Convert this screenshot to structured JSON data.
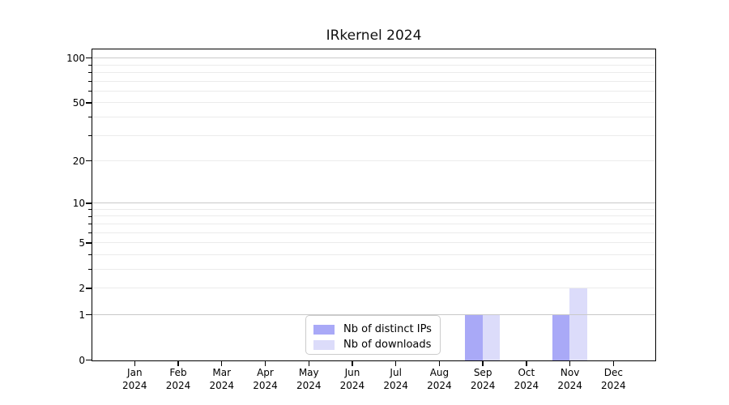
{
  "chart_data": {
    "type": "bar",
    "title": "IRkernel 2024",
    "categories": [
      "Jan",
      "Feb",
      "Mar",
      "Apr",
      "May",
      "Jun",
      "Jul",
      "Aug",
      "Sep",
      "Oct",
      "Nov",
      "Dec"
    ],
    "category_year": "2024",
    "series": [
      {
        "name": "Nb of distinct IPs",
        "color": "#a9a9f7",
        "values": [
          0,
          0,
          0,
          0,
          0,
          0,
          0,
          0,
          1,
          0,
          1,
          0
        ]
      },
      {
        "name": "Nb of downloads",
        "color": "#dcdcfa",
        "values": [
          0,
          0,
          0,
          0,
          0,
          0,
          0,
          0,
          1,
          0,
          2,
          0
        ]
      }
    ],
    "xlabel": "",
    "ylabel": "",
    "y_axis": {
      "scale": "log1p",
      "tick_labels": [
        "0",
        "1",
        "2",
        "5",
        "10",
        "20",
        "50",
        "100"
      ],
      "tick_values": [
        0,
        1,
        2,
        5,
        10,
        20,
        50,
        100
      ],
      "major_gridline_values": [
        1,
        10,
        100
      ],
      "minor_gridline_values": [
        2,
        3,
        4,
        5,
        6,
        7,
        8,
        9,
        20,
        30,
        40,
        50,
        60,
        70,
        80,
        90
      ],
      "ylim": [
        0,
        115
      ]
    },
    "grid": "on",
    "legend_position": "lower center-left inside plot"
  },
  "colors": {
    "major_grid": "#c9c9c9",
    "minor_grid": "#ebebeb",
    "axis": "#000000",
    "background": "#ffffff",
    "legend_border": "#cccccc"
  }
}
